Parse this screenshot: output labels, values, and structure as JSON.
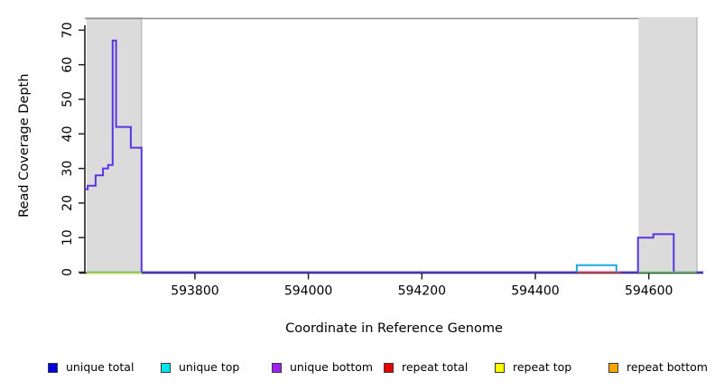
{
  "chart_data": {
    "type": "line",
    "title": "",
    "xlabel": "Coordinate in Reference Genome",
    "ylabel": "Read Coverage Depth",
    "xlim": [
      593606,
      594696
    ],
    "ylim": [
      0,
      70
    ],
    "x_ticks": [
      593800,
      594000,
      594200,
      594400,
      594600
    ],
    "y_ticks": [
      0,
      10,
      20,
      30,
      40,
      50,
      60,
      70
    ],
    "grid": false,
    "legend_position": "bottom",
    "axis_color": "#222222",
    "shaded_regions": [
      {
        "x0": 593609,
        "x1": 593706,
        "color": "#DBDBDB",
        "edge": "#ABABAB"
      },
      {
        "x0": 594582,
        "x1": 594685,
        "color": "#DBDBDB",
        "edge": "#ABABAB"
      }
    ],
    "top_rule": {
      "x0": 593606,
      "x1": 594582,
      "color": "#8C8C8C"
    },
    "series": [
      {
        "name": "unique-coverage-line",
        "color": "#5936E3",
        "width": 2,
        "points": [
          [
            593606,
            24
          ],
          [
            593611,
            24
          ],
          [
            593611,
            25
          ],
          [
            593625,
            25
          ],
          [
            593625,
            28
          ],
          [
            593638,
            28
          ],
          [
            593638,
            30
          ],
          [
            593647,
            30
          ],
          [
            593647,
            31
          ],
          [
            593655,
            31
          ],
          [
            593655,
            67
          ],
          [
            593661,
            67
          ],
          [
            593661,
            42
          ],
          [
            593687,
            42
          ],
          [
            593687,
            36
          ],
          [
            593706,
            36
          ],
          [
            593706,
            0
          ],
          [
            594581,
            0
          ],
          [
            594581,
            10
          ],
          [
            594608,
            10
          ],
          [
            594608,
            11
          ],
          [
            594644,
            11
          ],
          [
            594644,
            0
          ],
          [
            594696,
            0
          ]
        ]
      },
      {
        "name": "repeat-total-zero-segment",
        "color": "#E3415C",
        "width": 1.8,
        "points": [
          [
            594475,
            0
          ],
          [
            594551,
            0
          ]
        ]
      },
      {
        "name": "unique-top-box",
        "color": "#1FA8E0",
        "width": 2,
        "points": [
          [
            594473,
            0
          ],
          [
            594473,
            2
          ],
          [
            594543,
            2
          ],
          [
            594543,
            0
          ]
        ]
      },
      {
        "name": "repeat-top-zero-left",
        "color": "#EFE27A",
        "width": 2,
        "dy": 1.4,
        "points": [
          [
            593609,
            0
          ],
          [
            593706,
            0
          ]
        ]
      },
      {
        "name": "zero-marker-left",
        "color": "#69C46D",
        "width": 1.8,
        "points": [
          [
            593609,
            0
          ],
          [
            593706,
            0
          ]
        ]
      },
      {
        "name": "zero-marker-right",
        "color": "#69C46D",
        "width": 1.8,
        "points": [
          [
            594582,
            0
          ],
          [
            594684,
            0
          ]
        ]
      }
    ]
  },
  "legend": {
    "items": [
      {
        "label": "unique total",
        "color": "#0000DC"
      },
      {
        "label": "unique top",
        "color": "#00E5EE"
      },
      {
        "label": "unique bottom",
        "color": "#A020F0"
      },
      {
        "label": "repeat total",
        "color": "#E80000"
      },
      {
        "label": "repeat top",
        "color": "#FFFF00"
      },
      {
        "label": "repeat bottom",
        "color": "#FFA500"
      }
    ]
  }
}
